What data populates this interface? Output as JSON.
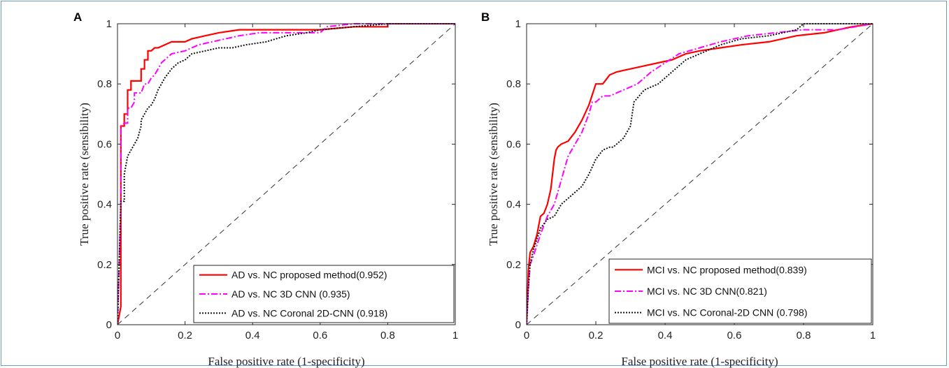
{
  "chart_data": [
    {
      "type": "line",
      "panel": "A",
      "xlabel": "False positive rate (1-specificity)",
      "ylabel": "True positive rate (sensibility)",
      "xlim": [
        0,
        1
      ],
      "ylim": [
        0,
        1
      ],
      "xticks": [
        "0",
        "0.2",
        "0.4",
        "0.6",
        "0.8",
        "1"
      ],
      "yticks": [
        "0",
        "0.2",
        "0.4",
        "0.6",
        "0.8",
        "1"
      ],
      "legend_position": "bottom-right",
      "series": [
        {
          "name": "AD vs. NC proposed method(0.952)",
          "color": "#ff0000",
          "style": "solid",
          "x": [
            0,
            0.01,
            0.01,
            0.01,
            0.02,
            0.02,
            0.03,
            0.03,
            0.04,
            0.04,
            0.05,
            0.06,
            0.07,
            0.07,
            0.08,
            0.08,
            0.09,
            0.09,
            0.1,
            0.11,
            0.12,
            0.14,
            0.16,
            0.2,
            0.22,
            0.26,
            0.3,
            0.36,
            0.42,
            0.5,
            0.6,
            0.7,
            0.8,
            0.8,
            0.85,
            1
          ],
          "y": [
            0,
            0.06,
            0.5,
            0.66,
            0.66,
            0.7,
            0.7,
            0.78,
            0.78,
            0.81,
            0.81,
            0.81,
            0.81,
            0.85,
            0.85,
            0.88,
            0.88,
            0.91,
            0.91,
            0.92,
            0.92,
            0.93,
            0.94,
            0.94,
            0.95,
            0.96,
            0.97,
            0.98,
            0.98,
            0.98,
            0.98,
            0.99,
            0.99,
            1.0,
            1.0,
            1.0
          ]
        },
        {
          "name": "AD vs. NC 3D CNN (0.935)",
          "color": "#ff00ff",
          "style": "dashdot",
          "x": [
            0,
            0.01,
            0.01,
            0.02,
            0.03,
            0.03,
            0.04,
            0.05,
            0.05,
            0.07,
            0.08,
            0.09,
            0.1,
            0.11,
            0.12,
            0.13,
            0.14,
            0.16,
            0.2,
            0.24,
            0.28,
            0.32,
            0.36,
            0.42,
            0.5,
            0.6,
            0.62,
            0.7,
            0.8,
            1
          ],
          "y": [
            0,
            0.4,
            0.66,
            0.67,
            0.67,
            0.72,
            0.72,
            0.74,
            0.77,
            0.77,
            0.8,
            0.8,
            0.82,
            0.83,
            0.85,
            0.87,
            0.88,
            0.9,
            0.91,
            0.93,
            0.94,
            0.95,
            0.96,
            0.97,
            0.97,
            0.97,
            0.99,
            1.0,
            1.0,
            1.0
          ]
        },
        {
          "name": "AD vs. NC Coronal 2D-CNN (0.918)",
          "color": "#111111",
          "style": "dotted",
          "x": [
            0,
            0.01,
            0.02,
            0.02,
            0.03,
            0.04,
            0.05,
            0.06,
            0.07,
            0.07,
            0.08,
            0.09,
            0.1,
            0.11,
            0.12,
            0.13,
            0.14,
            0.16,
            0.18,
            0.2,
            0.22,
            0.26,
            0.3,
            0.34,
            0.38,
            0.44,
            0.5,
            0.56,
            0.6,
            0.7,
            0.8,
            0.9,
            1
          ],
          "y": [
            0,
            0.41,
            0.41,
            0.5,
            0.56,
            0.58,
            0.6,
            0.62,
            0.66,
            0.68,
            0.7,
            0.72,
            0.73,
            0.75,
            0.78,
            0.8,
            0.82,
            0.85,
            0.87,
            0.88,
            0.9,
            0.91,
            0.92,
            0.92,
            0.93,
            0.94,
            0.96,
            0.97,
            0.98,
            0.99,
            1.0,
            1.0,
            1.0
          ]
        },
        {
          "name": "",
          "color": "#333333",
          "style": "dashed",
          "x": [
            0,
            1
          ],
          "y": [
            0,
            1
          ]
        }
      ]
    },
    {
      "type": "line",
      "panel": "B",
      "xlabel": "False positive rate (1-specificity)",
      "ylabel": "True positive rate (sensibility)",
      "xlim": [
        0,
        1
      ],
      "ylim": [
        0,
        1
      ],
      "xticks": [
        "0",
        "0.2",
        "0.4",
        "0.6",
        "0.8",
        "1"
      ],
      "yticks": [
        "0",
        "0.2",
        "0.4",
        "0.6",
        "0.8",
        "1"
      ],
      "legend_position": "bottom-right",
      "series": [
        {
          "name": "MCI vs. NC proposed method(0.839)",
          "color": "#ff0000",
          "style": "solid",
          "x": [
            0,
            0.005,
            0.01,
            0.02,
            0.03,
            0.04,
            0.05,
            0.06,
            0.07,
            0.08,
            0.085,
            0.09,
            0.1,
            0.12,
            0.14,
            0.16,
            0.18,
            0.2,
            0.21,
            0.22,
            0.24,
            0.26,
            0.3,
            0.34,
            0.38,
            0.42,
            0.46,
            0.5,
            0.56,
            0.62,
            0.7,
            0.78,
            0.86,
            0.9,
            0.94,
            1
          ],
          "y": [
            0,
            0.18,
            0.24,
            0.26,
            0.3,
            0.36,
            0.37,
            0.4,
            0.45,
            0.55,
            0.58,
            0.59,
            0.6,
            0.61,
            0.64,
            0.68,
            0.73,
            0.8,
            0.8,
            0.8,
            0.83,
            0.84,
            0.85,
            0.86,
            0.87,
            0.88,
            0.9,
            0.91,
            0.92,
            0.93,
            0.94,
            0.96,
            0.97,
            0.98,
            0.99,
            1.0
          ]
        },
        {
          "name": "MCI vs. NC 3D CNN(0.821)",
          "color": "#ff00ff",
          "style": "dashdot",
          "x": [
            0,
            0.005,
            0.01,
            0.02,
            0.04,
            0.06,
            0.08,
            0.1,
            0.12,
            0.14,
            0.16,
            0.18,
            0.19,
            0.2,
            0.22,
            0.24,
            0.28,
            0.32,
            0.36,
            0.4,
            0.44,
            0.5,
            0.56,
            0.64,
            0.72,
            0.8,
            0.9,
            1
          ],
          "y": [
            0,
            0.12,
            0.2,
            0.23,
            0.3,
            0.36,
            0.4,
            0.48,
            0.56,
            0.6,
            0.64,
            0.7,
            0.74,
            0.74,
            0.76,
            0.76,
            0.78,
            0.8,
            0.84,
            0.87,
            0.9,
            0.92,
            0.94,
            0.96,
            0.97,
            0.98,
            0.98,
            1.0
          ]
        },
        {
          "name": "MCI vs. NC Coronal-2D CNN (0.798)",
          "color": "#111111",
          "style": "dotted",
          "x": [
            0,
            0.005,
            0.01,
            0.02,
            0.04,
            0.06,
            0.08,
            0.1,
            0.12,
            0.14,
            0.16,
            0.18,
            0.2,
            0.22,
            0.24,
            0.25,
            0.28,
            0.3,
            0.31,
            0.34,
            0.38,
            0.42,
            0.46,
            0.5,
            0.56,
            0.62,
            0.7,
            0.78,
            0.8,
            0.86,
            0.94,
            1
          ],
          "y": [
            0,
            0.12,
            0.2,
            0.25,
            0.32,
            0.35,
            0.36,
            0.4,
            0.42,
            0.44,
            0.46,
            0.5,
            0.55,
            0.58,
            0.59,
            0.59,
            0.62,
            0.66,
            0.74,
            0.78,
            0.8,
            0.84,
            0.88,
            0.9,
            0.93,
            0.95,
            0.96,
            0.98,
            1.0,
            1.0,
            1.0,
            1.0
          ]
        },
        {
          "name": "",
          "color": "#333333",
          "style": "dashed",
          "x": [
            0,
            1
          ],
          "y": [
            0,
            1
          ]
        }
      ]
    }
  ]
}
